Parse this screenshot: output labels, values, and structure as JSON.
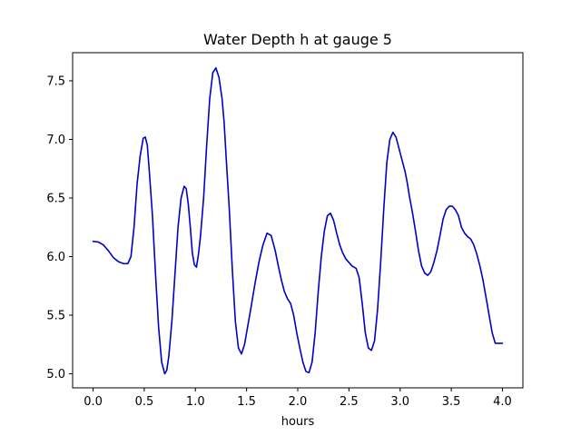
{
  "chart_data": {
    "type": "line",
    "title": "Water Depth h at gauge 5",
    "xlabel": "hours",
    "ylabel": "",
    "xlim": [
      -0.2,
      4.2
    ],
    "ylim": [
      4.88,
      7.74
    ],
    "xticks": [
      0.0,
      0.5,
      1.0,
      1.5,
      2.0,
      2.5,
      3.0,
      3.5,
      4.0
    ],
    "yticks": [
      5.0,
      5.5,
      6.0,
      6.5,
      7.0,
      7.5
    ],
    "xtick_labels": [
      "0.0",
      "0.5",
      "1.0",
      "1.5",
      "2.0",
      "2.5",
      "3.0",
      "3.5",
      "4.0"
    ],
    "ytick_labels": [
      "5.0",
      "5.5",
      "6.0",
      "6.5",
      "7.0",
      "7.5"
    ],
    "grid": false,
    "series": [
      {
        "color": "#0000cc",
        "x": [
          0.0,
          0.05,
          0.1,
          0.15,
          0.2,
          0.25,
          0.3,
          0.34,
          0.37,
          0.4,
          0.43,
          0.46,
          0.49,
          0.51,
          0.53,
          0.55,
          0.58,
          0.61,
          0.64,
          0.67,
          0.7,
          0.72,
          0.74,
          0.77,
          0.8,
          0.83,
          0.86,
          0.89,
          0.91,
          0.93,
          0.95,
          0.97,
          0.99,
          1.01,
          1.03,
          1.05,
          1.08,
          1.11,
          1.14,
          1.17,
          1.2,
          1.23,
          1.26,
          1.28,
          1.3,
          1.33,
          1.36,
          1.39,
          1.42,
          1.45,
          1.48,
          1.51,
          1.54,
          1.58,
          1.62,
          1.66,
          1.7,
          1.74,
          1.78,
          1.81,
          1.84,
          1.87,
          1.9,
          1.93,
          1.96,
          1.99,
          2.02,
          2.05,
          2.08,
          2.11,
          2.14,
          2.17,
          2.2,
          2.23,
          2.26,
          2.29,
          2.32,
          2.35,
          2.38,
          2.41,
          2.44,
          2.47,
          2.5,
          2.53,
          2.57,
          2.6,
          2.63,
          2.66,
          2.69,
          2.72,
          2.75,
          2.78,
          2.81,
          2.84,
          2.87,
          2.9,
          2.93,
          2.96,
          2.99,
          3.02,
          3.05,
          3.07,
          3.09,
          3.12,
          3.15,
          3.18,
          3.21,
          3.24,
          3.27,
          3.3,
          3.33,
          3.36,
          3.39,
          3.42,
          3.45,
          3.48,
          3.51,
          3.54,
          3.57,
          3.6,
          3.63,
          3.66,
          3.69,
          3.72,
          3.75,
          3.78,
          3.81,
          3.84,
          3.87,
          3.9,
          3.93,
          3.96,
          4.0
        ],
        "y": [
          6.13,
          6.125,
          6.1,
          6.05,
          5.99,
          5.955,
          5.94,
          5.94,
          6.0,
          6.25,
          6.62,
          6.86,
          7.01,
          7.02,
          6.95,
          6.72,
          6.35,
          5.85,
          5.4,
          5.1,
          5.0,
          5.03,
          5.15,
          5.45,
          5.85,
          6.25,
          6.5,
          6.6,
          6.58,
          6.45,
          6.25,
          6.03,
          5.93,
          5.91,
          6.02,
          6.18,
          6.5,
          6.95,
          7.35,
          7.57,
          7.61,
          7.53,
          7.35,
          7.15,
          6.85,
          6.42,
          5.9,
          5.45,
          5.22,
          5.17,
          5.25,
          5.4,
          5.55,
          5.76,
          5.95,
          6.1,
          6.2,
          6.18,
          6.05,
          5.92,
          5.8,
          5.7,
          5.64,
          5.6,
          5.5,
          5.35,
          5.22,
          5.1,
          5.02,
          5.01,
          5.1,
          5.35,
          5.7,
          6.0,
          6.22,
          6.35,
          6.37,
          6.31,
          6.2,
          6.1,
          6.03,
          5.98,
          5.95,
          5.92,
          5.9,
          5.82,
          5.6,
          5.35,
          5.22,
          5.2,
          5.28,
          5.55,
          5.95,
          6.4,
          6.8,
          7.0,
          7.06,
          7.02,
          6.92,
          6.82,
          6.72,
          6.63,
          6.52,
          6.38,
          6.22,
          6.05,
          5.92,
          5.86,
          5.84,
          5.87,
          5.95,
          6.05,
          6.18,
          6.32,
          6.4,
          6.43,
          6.43,
          6.4,
          6.35,
          6.25,
          6.2,
          6.17,
          6.15,
          6.1,
          6.02,
          5.92,
          5.8,
          5.65,
          5.5,
          5.35,
          5.26,
          5.26,
          5.26
        ]
      }
    ]
  }
}
